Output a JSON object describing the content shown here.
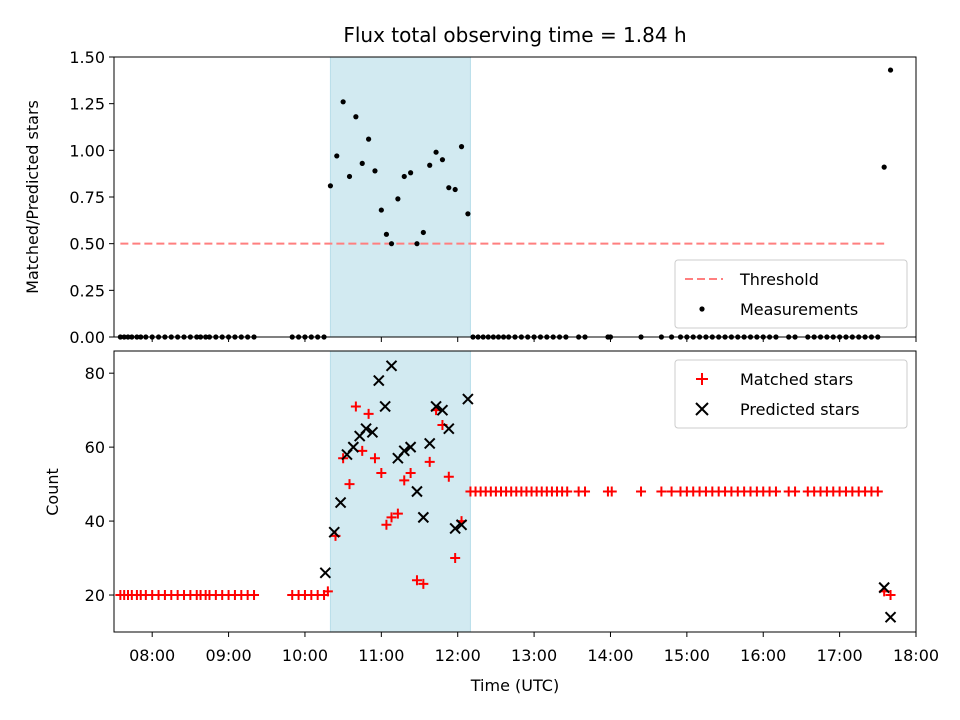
{
  "chart_data": [
    {
      "type": "scatter",
      "title": "Flux total observing time = 1.84 h",
      "xlabel": "",
      "ylabel": "Matched/Predicted stars",
      "xlim": [
        "07:30",
        "18:00"
      ],
      "ylim": [
        0,
        1.5
      ],
      "yticks": [
        "0.00",
        "0.25",
        "0.50",
        "0.75",
        "1.00",
        "1.25",
        "1.50"
      ],
      "shaded_region": {
        "x_start": "10:20",
        "x_end": "12:10",
        "color": "#add8e6"
      },
      "legend_position": "lower-right",
      "series": [
        {
          "name": "Threshold",
          "kind": "dashed-line",
          "color": "#ff7f7f",
          "points": [
            [
              "07:35",
              0.5
            ],
            [
              "17:35",
              0.5
            ]
          ]
        },
        {
          "name": "Measurements",
          "kind": "dots",
          "color": "#000000",
          "points": [
            [
              "07:35",
              0
            ],
            [
              "07:38",
              0
            ],
            [
              "07:41",
              0
            ],
            [
              "07:44",
              0
            ],
            [
              "07:48",
              0
            ],
            [
              "07:51",
              0
            ],
            [
              "07:55",
              0
            ],
            [
              "08:00",
              0
            ],
            [
              "08:05",
              0
            ],
            [
              "08:10",
              0
            ],
            [
              "08:15",
              0
            ],
            [
              "08:20",
              0
            ],
            [
              "08:25",
              0
            ],
            [
              "08:30",
              0
            ],
            [
              "08:35",
              0
            ],
            [
              "08:38",
              0
            ],
            [
              "08:42",
              0
            ],
            [
              "08:45",
              0
            ],
            [
              "08:50",
              0
            ],
            [
              "08:55",
              0
            ],
            [
              "09:00",
              0
            ],
            [
              "09:05",
              0
            ],
            [
              "09:10",
              0
            ],
            [
              "09:15",
              0
            ],
            [
              "09:20",
              0
            ],
            [
              "09:50",
              0
            ],
            [
              "09:55",
              0
            ],
            [
              "10:00",
              0
            ],
            [
              "10:05",
              0
            ],
            [
              "10:10",
              0
            ],
            [
              "10:15",
              0
            ],
            [
              "10:20",
              0.81
            ],
            [
              "10:25",
              0.97
            ],
            [
              "10:30",
              1.26
            ],
            [
              "10:35",
              0.86
            ],
            [
              "10:40",
              1.18
            ],
            [
              "10:45",
              0.93
            ],
            [
              "10:50",
              1.06
            ],
            [
              "10:55",
              0.89
            ],
            [
              "11:00",
              0.68
            ],
            [
              "11:04",
              0.55
            ],
            [
              "11:08",
              0.5
            ],
            [
              "11:13",
              0.74
            ],
            [
              "11:18",
              0.86
            ],
            [
              "11:23",
              0.88
            ],
            [
              "11:28",
              0.5
            ],
            [
              "11:33",
              0.56
            ],
            [
              "11:38",
              0.92
            ],
            [
              "11:43",
              0.99
            ],
            [
              "11:48",
              0.95
            ],
            [
              "11:53",
              0.8
            ],
            [
              "11:58",
              0.79
            ],
            [
              "12:03",
              1.02
            ],
            [
              "12:08",
              0.66
            ],
            [
              "12:12",
              0
            ],
            [
              "12:16",
              0
            ],
            [
              "12:20",
              0
            ],
            [
              "12:24",
              0
            ],
            [
              "12:28",
              0
            ],
            [
              "12:32",
              0
            ],
            [
              "12:36",
              0
            ],
            [
              "12:40",
              0
            ],
            [
              "12:45",
              0
            ],
            [
              "12:50",
              0
            ],
            [
              "12:55",
              0
            ],
            [
              "13:00",
              0
            ],
            [
              "13:05",
              0
            ],
            [
              "13:10",
              0
            ],
            [
              "13:15",
              0
            ],
            [
              "13:20",
              0
            ],
            [
              "13:25",
              0
            ],
            [
              "13:35",
              0
            ],
            [
              "13:40",
              0
            ],
            [
              "13:58",
              0
            ],
            [
              "14:00",
              0
            ],
            [
              "14:24",
              0
            ],
            [
              "14:40",
              0
            ],
            [
              "14:48",
              0
            ],
            [
              "14:55",
              0
            ],
            [
              "15:00",
              0
            ],
            [
              "15:05",
              0
            ],
            [
              "15:10",
              0
            ],
            [
              "15:15",
              0
            ],
            [
              "15:20",
              0
            ],
            [
              "15:25",
              0
            ],
            [
              "15:30",
              0
            ],
            [
              "15:35",
              0
            ],
            [
              "15:40",
              0
            ],
            [
              "15:45",
              0
            ],
            [
              "15:50",
              0
            ],
            [
              "15:55",
              0
            ],
            [
              "16:00",
              0
            ],
            [
              "16:05",
              0
            ],
            [
              "16:10",
              0
            ],
            [
              "16:20",
              0
            ],
            [
              "16:25",
              0
            ],
            [
              "16:35",
              0
            ],
            [
              "16:40",
              0
            ],
            [
              "16:45",
              0
            ],
            [
              "16:50",
              0
            ],
            [
              "16:55",
              0
            ],
            [
              "17:00",
              0
            ],
            [
              "17:05",
              0
            ],
            [
              "17:10",
              0
            ],
            [
              "17:15",
              0
            ],
            [
              "17:20",
              0
            ],
            [
              "17:25",
              0
            ],
            [
              "17:30",
              0
            ],
            [
              "17:35",
              0.91
            ],
            [
              "17:40",
              1.43
            ]
          ]
        }
      ]
    },
    {
      "type": "scatter",
      "title": "",
      "xlabel": "Time (UTC)",
      "ylabel": "Count",
      "xlim": [
        "07:30",
        "18:00"
      ],
      "ylim": [
        10,
        86
      ],
      "xticks": [
        "08:00",
        "09:00",
        "10:00",
        "11:00",
        "12:00",
        "13:00",
        "14:00",
        "15:00",
        "16:00",
        "17:00",
        "18:00"
      ],
      "yticks": [
        "20",
        "40",
        "60",
        "80"
      ],
      "shaded_region": {
        "x_start": "10:20",
        "x_end": "12:10",
        "color": "#add8e6"
      },
      "legend_position": "upper-right",
      "series": [
        {
          "name": "Matched stars",
          "kind": "plus",
          "color": "#ff0000",
          "points": [
            [
              "07:35",
              20
            ],
            [
              "07:38",
              20
            ],
            [
              "07:41",
              20
            ],
            [
              "07:44",
              20
            ],
            [
              "07:48",
              20
            ],
            [
              "07:51",
              20
            ],
            [
              "07:55",
              20
            ],
            [
              "08:00",
              20
            ],
            [
              "08:05",
              20
            ],
            [
              "08:10",
              20
            ],
            [
              "08:15",
              20
            ],
            [
              "08:20",
              20
            ],
            [
              "08:25",
              20
            ],
            [
              "08:30",
              20
            ],
            [
              "08:35",
              20
            ],
            [
              "08:38",
              20
            ],
            [
              "08:42",
              20
            ],
            [
              "08:45",
              20
            ],
            [
              "08:50",
              20
            ],
            [
              "08:55",
              20
            ],
            [
              "09:00",
              20
            ],
            [
              "09:05",
              20
            ],
            [
              "09:10",
              20
            ],
            [
              "09:15",
              20
            ],
            [
              "09:20",
              20
            ],
            [
              "09:50",
              20
            ],
            [
              "09:55",
              20
            ],
            [
              "10:00",
              20
            ],
            [
              "10:05",
              20
            ],
            [
              "10:10",
              20
            ],
            [
              "10:15",
              20
            ],
            [
              "10:18",
              21
            ],
            [
              "10:24",
              36
            ],
            [
              "10:30",
              57
            ],
            [
              "10:35",
              50
            ],
            [
              "10:40",
              71
            ],
            [
              "10:45",
              59
            ],
            [
              "10:50",
              69
            ],
            [
              "10:55",
              57
            ],
            [
              "11:00",
              53
            ],
            [
              "11:04",
              39
            ],
            [
              "11:08",
              41
            ],
            [
              "11:13",
              42
            ],
            [
              "11:18",
              51
            ],
            [
              "11:23",
              53
            ],
            [
              "11:28",
              24
            ],
            [
              "11:33",
              23
            ],
            [
              "11:38",
              56
            ],
            [
              "11:43",
              70
            ],
            [
              "11:48",
              66
            ],
            [
              "11:53",
              52
            ],
            [
              "11:58",
              30
            ],
            [
              "12:03",
              40
            ],
            [
              "12:10",
              48
            ],
            [
              "12:14",
              48
            ],
            [
              "12:18",
              48
            ],
            [
              "12:22",
              48
            ],
            [
              "12:26",
              48
            ],
            [
              "12:30",
              48
            ],
            [
              "12:34",
              48
            ],
            [
              "12:38",
              48
            ],
            [
              "12:42",
              48
            ],
            [
              "12:46",
              48
            ],
            [
              "12:50",
              48
            ],
            [
              "12:54",
              48
            ],
            [
              "12:58",
              48
            ],
            [
              "13:02",
              48
            ],
            [
              "13:06",
              48
            ],
            [
              "13:10",
              48
            ],
            [
              "13:14",
              48
            ],
            [
              "13:18",
              48
            ],
            [
              "13:22",
              48
            ],
            [
              "13:26",
              48
            ],
            [
              "13:35",
              48
            ],
            [
              "13:40",
              48
            ],
            [
              "13:58",
              48
            ],
            [
              "14:01",
              48
            ],
            [
              "14:24",
              48
            ],
            [
              "14:40",
              48
            ],
            [
              "14:48",
              48
            ],
            [
              "14:55",
              48
            ],
            [
              "15:00",
              48
            ],
            [
              "15:05",
              48
            ],
            [
              "15:10",
              48
            ],
            [
              "15:15",
              48
            ],
            [
              "15:20",
              48
            ],
            [
              "15:25",
              48
            ],
            [
              "15:30",
              48
            ],
            [
              "15:35",
              48
            ],
            [
              "15:40",
              48
            ],
            [
              "15:45",
              48
            ],
            [
              "15:50",
              48
            ],
            [
              "15:55",
              48
            ],
            [
              "16:00",
              48
            ],
            [
              "16:05",
              48
            ],
            [
              "16:10",
              48
            ],
            [
              "16:20",
              48
            ],
            [
              "16:25",
              48
            ],
            [
              "16:35",
              48
            ],
            [
              "16:40",
              48
            ],
            [
              "16:45",
              48
            ],
            [
              "16:50",
              48
            ],
            [
              "16:55",
              48
            ],
            [
              "17:00",
              48
            ],
            [
              "17:05",
              48
            ],
            [
              "17:10",
              48
            ],
            [
              "17:15",
              48
            ],
            [
              "17:20",
              48
            ],
            [
              "17:25",
              48
            ],
            [
              "17:30",
              48
            ],
            [
              "17:35",
              21
            ],
            [
              "17:40",
              20
            ]
          ]
        },
        {
          "name": "Predicted stars",
          "kind": "cross",
          "color": "#000000",
          "points": [
            [
              "10:16",
              26
            ],
            [
              "10:23",
              37
            ],
            [
              "10:28",
              45
            ],
            [
              "10:33",
              58
            ],
            [
              "10:38",
              60
            ],
            [
              "10:43",
              63
            ],
            [
              "10:48",
              65
            ],
            [
              "10:53",
              64
            ],
            [
              "10:58",
              78
            ],
            [
              "11:03",
              71
            ],
            [
              "11:08",
              82
            ],
            [
              "11:13",
              57
            ],
            [
              "11:18",
              59
            ],
            [
              "11:23",
              60
            ],
            [
              "11:28",
              48
            ],
            [
              "11:33",
              41
            ],
            [
              "11:38",
              61
            ],
            [
              "11:43",
              71
            ],
            [
              "11:48",
              70
            ],
            [
              "11:53",
              65
            ],
            [
              "11:58",
              38
            ],
            [
              "12:03",
              39
            ],
            [
              "12:08",
              73
            ],
            [
              "17:35",
              22
            ],
            [
              "17:40",
              14
            ]
          ]
        }
      ]
    }
  ]
}
